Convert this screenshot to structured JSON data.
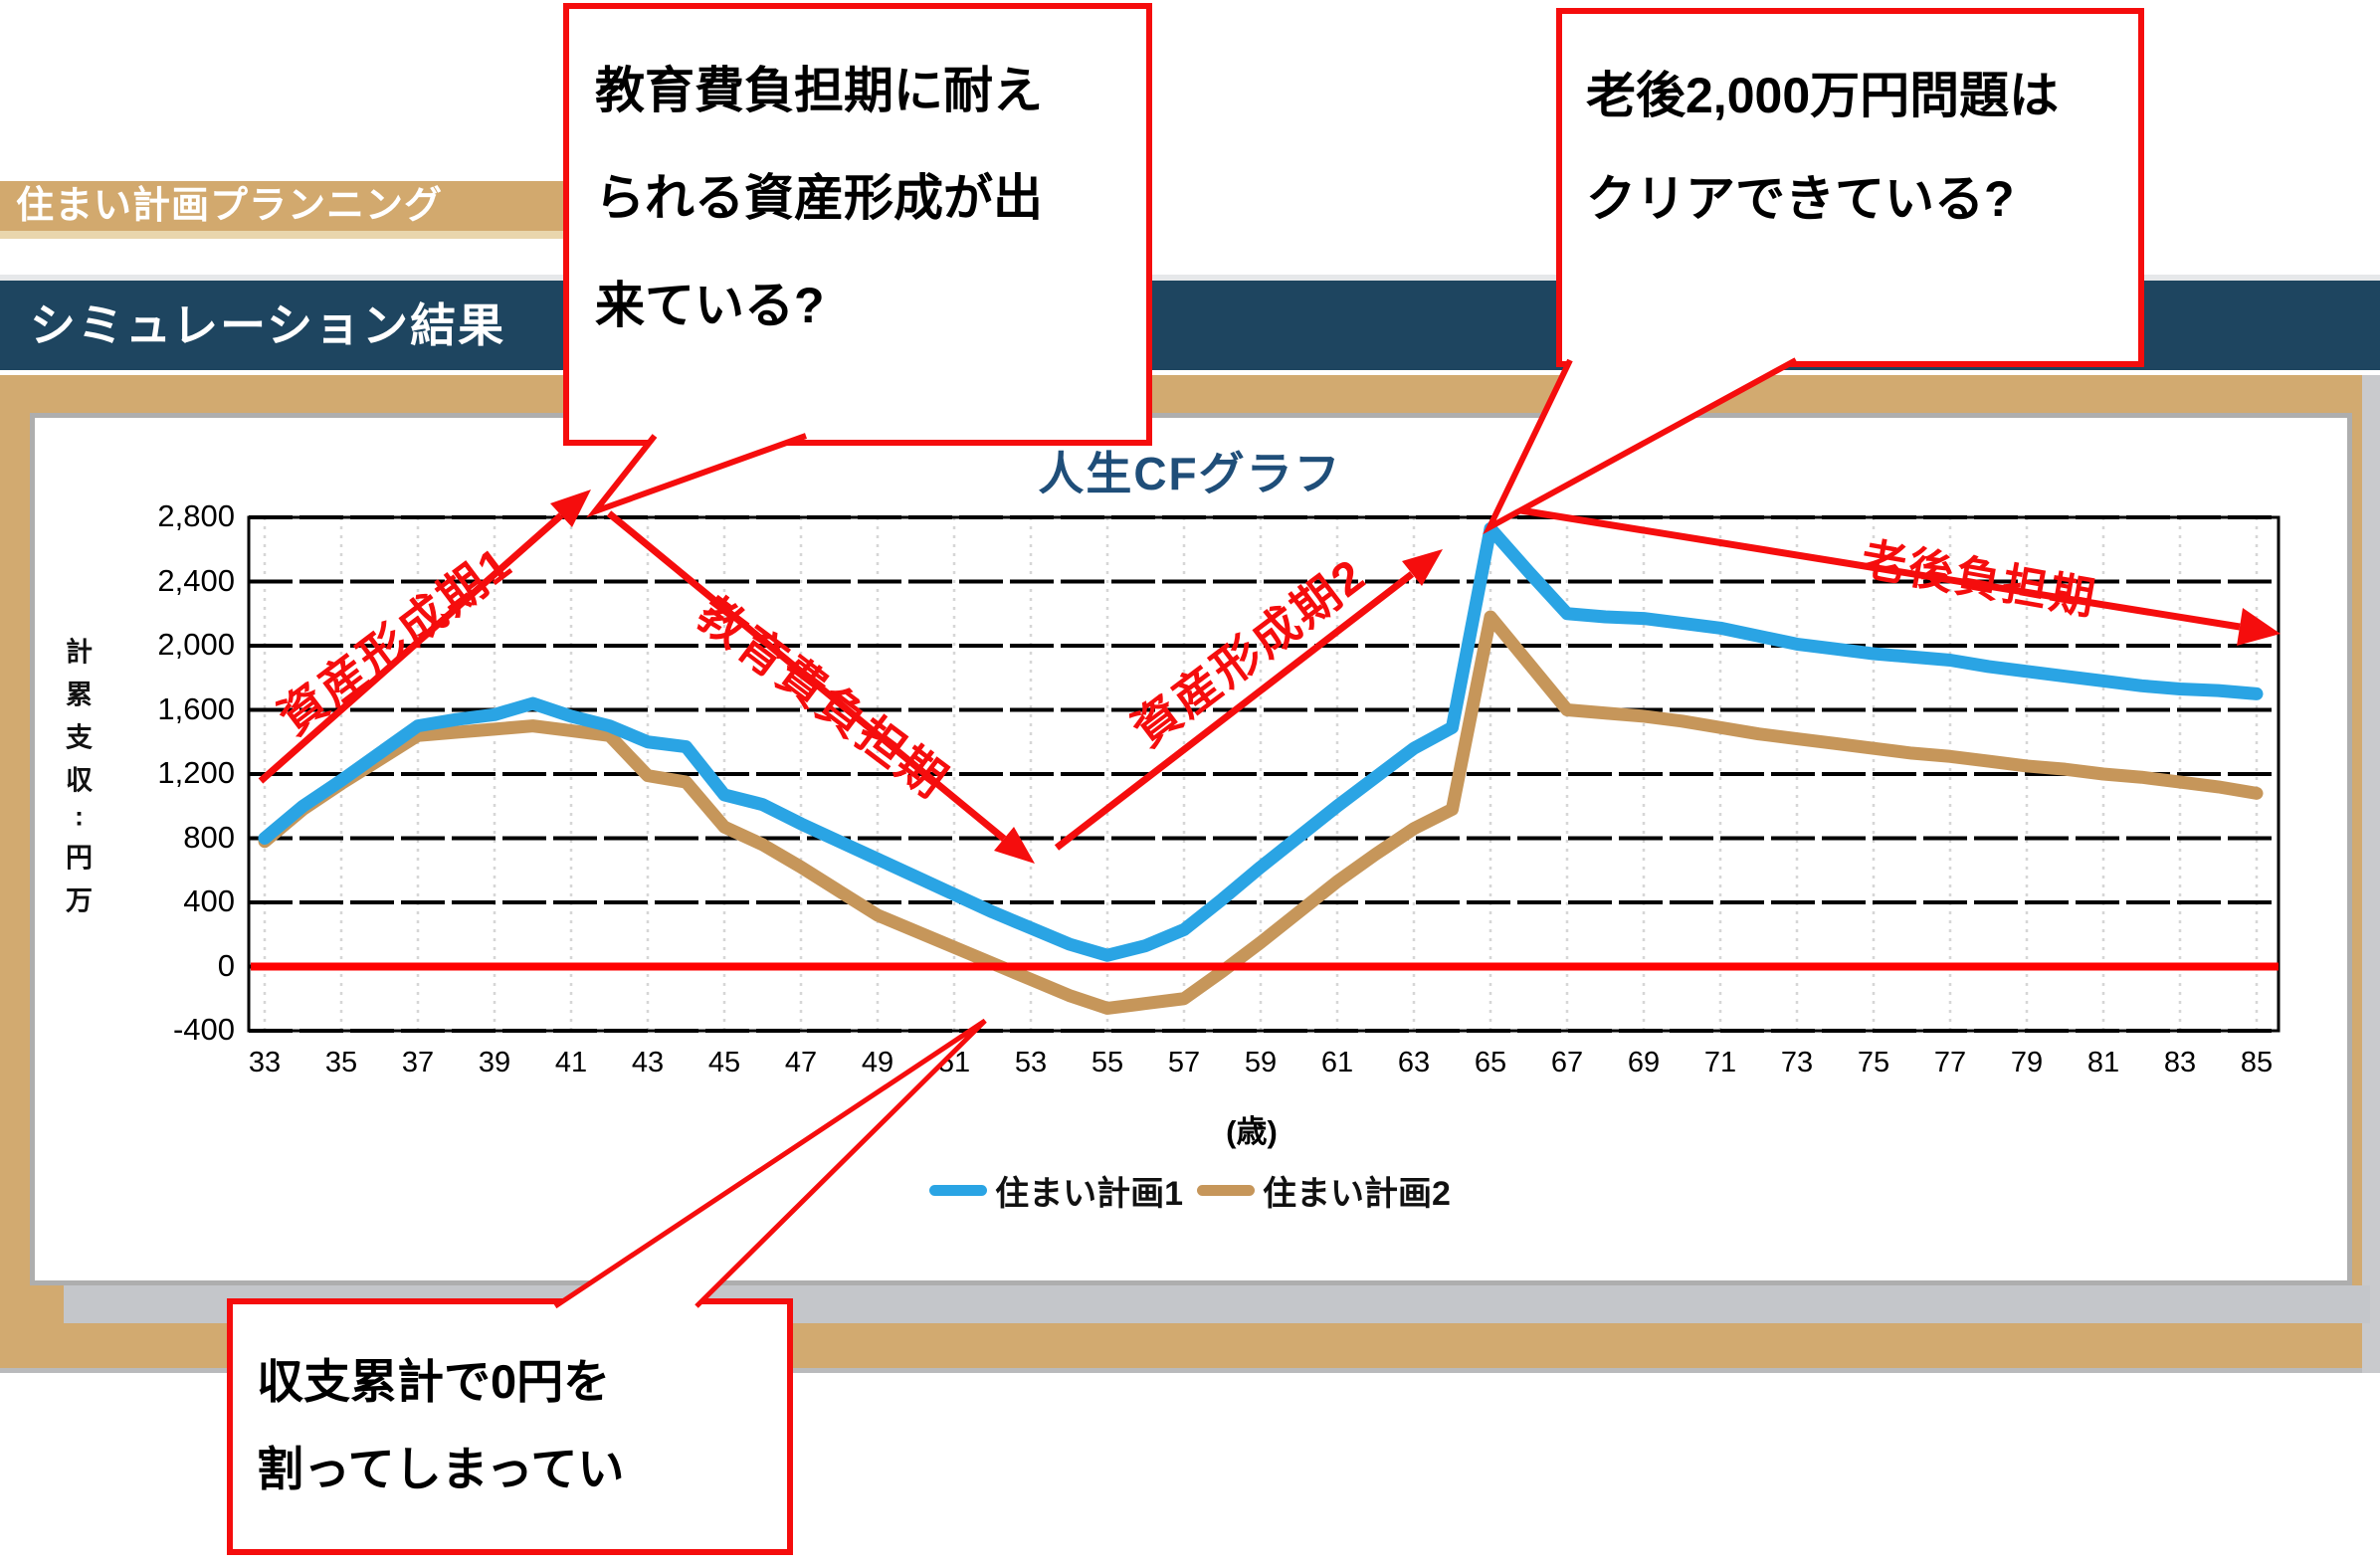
{
  "header": {
    "app_title": "住まい計画プランニング",
    "section_title": "シミュレーション結果"
  },
  "chart": {
    "title": "人生CFグラフ",
    "y_axis_label": "万円:収支累計",
    "x_axis_label": "(歳)",
    "annotations": [
      {
        "id": "phase1",
        "text": "資産形成期1"
      },
      {
        "id": "phase2",
        "text": "教育費負担期"
      },
      {
        "id": "phase3",
        "text": "資産形成期2"
      },
      {
        "id": "phase4",
        "text": "老後負担期"
      }
    ]
  },
  "callouts": {
    "top_left": {
      "lines": [
        "教育費負担期に耐え",
        "られる資産形成が出",
        "来ている?"
      ]
    },
    "top_right": {
      "lines": [
        "老後2,000万円問題は",
        "クリアできている?"
      ]
    },
    "bottom_left": {
      "lines": [
        "収支累計で0円を",
        "割ってしまってい"
      ]
    }
  },
  "colors": {
    "plan1_blue": "#2aa4e4",
    "plan2_brown": "#c6965a",
    "tan_bar": "#d2a96e",
    "navy_bar": "#1e4560",
    "title_navy": "#1f4e79",
    "annotation_red": "#f50d0d",
    "zero_line_red": "#ff0000",
    "gridline_black": "#000000",
    "gridline_dotted_gray": "#d6d6d6"
  },
  "chart_data": {
    "type": "line",
    "title": "人生CFグラフ",
    "xlabel": "(歳)",
    "ylabel": "万円:収支累計",
    "ylim": [
      -400,
      2800
    ],
    "ytick_step": 400,
    "xlim": [
      33,
      85
    ],
    "xtick_step": 2,
    "grid": true,
    "legend_position": "bottom",
    "zero_line": true,
    "x": [
      33,
      34,
      35,
      36,
      37,
      38,
      39,
      40,
      41,
      42,
      43,
      44,
      45,
      46,
      47,
      48,
      49,
      50,
      51,
      52,
      53,
      54,
      55,
      56,
      57,
      58,
      59,
      60,
      61,
      62,
      63,
      64,
      65,
      66,
      67,
      68,
      69,
      70,
      71,
      72,
      73,
      74,
      75,
      76,
      77,
      78,
      79,
      80,
      81,
      82,
      83,
      84,
      85
    ],
    "series": [
      {
        "name": "住まい計画1",
        "color": "#2aa4e4",
        "values": [
          800,
          1000,
          1160,
          1330,
          1500,
          1540,
          1570,
          1640,
          1560,
          1500,
          1400,
          1370,
          1070,
          1010,
          890,
          780,
          670,
          560,
          450,
          340,
          240,
          140,
          70,
          130,
          230,
          420,
          620,
          810,
          1000,
          1180,
          1360,
          1490,
          2730,
          2460,
          2200,
          2180,
          2170,
          2140,
          2110,
          2060,
          2010,
          1980,
          1950,
          1930,
          1910,
          1870,
          1840,
          1810,
          1780,
          1750,
          1730,
          1720,
          1700
        ]
      },
      {
        "name": "住まい計画2",
        "color": "#c6965a",
        "values": [
          780,
          980,
          1140,
          1290,
          1440,
          1460,
          1480,
          1500,
          1470,
          1440,
          1190,
          1150,
          870,
          760,
          620,
          470,
          320,
          220,
          120,
          20,
          -80,
          -180,
          -260,
          -230,
          -200,
          -30,
          150,
          340,
          530,
          700,
          860,
          980,
          2180,
          1890,
          1600,
          1580,
          1560,
          1530,
          1490,
          1450,
          1420,
          1390,
          1360,
          1330,
          1310,
          1280,
          1250,
          1230,
          1200,
          1180,
          1150,
          1120,
          1080
        ]
      }
    ]
  }
}
